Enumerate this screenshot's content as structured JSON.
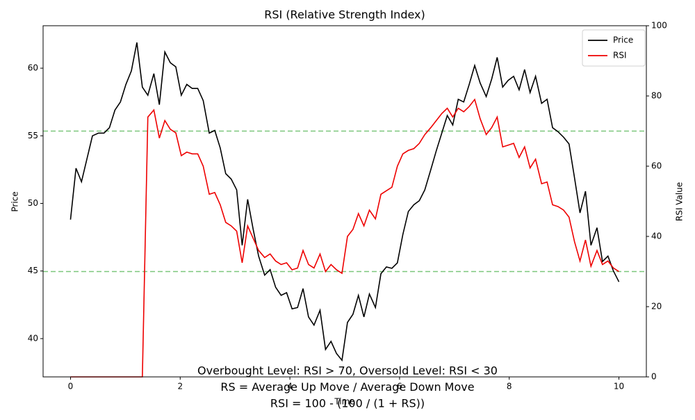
{
  "chart_data": {
    "type": "line",
    "title": "RSI (Relative Strength Index)",
    "xlabel": "Time",
    "ylabel": "Price",
    "y2label": "RSI Value",
    "annotation": [
      "Overbought Level: RSI > 70, Oversold Level: RSI < 30",
      "RS = Average Up Move / Average Down Move",
      "RSI = 100 - (100 / (1 + RS))"
    ],
    "x": [
      0,
      0.1,
      0.2,
      0.3,
      0.4,
      0.51,
      0.61,
      0.71,
      0.81,
      0.91,
      1.01,
      1.11,
      1.21,
      1.31,
      1.41,
      1.52,
      1.62,
      1.72,
      1.82,
      1.92,
      2.02,
      2.12,
      2.22,
      2.32,
      2.42,
      2.53,
      2.63,
      2.73,
      2.83,
      2.93,
      3.03,
      3.13,
      3.23,
      3.33,
      3.43,
      3.54,
      3.64,
      3.74,
      3.84,
      3.94,
      4.04,
      4.14,
      4.24,
      4.34,
      4.44,
      4.55,
      4.65,
      4.75,
      4.85,
      4.95,
      5.05,
      5.15,
      5.25,
      5.35,
      5.45,
      5.56,
      5.66,
      5.76,
      5.86,
      5.96,
      6.06,
      6.16,
      6.26,
      6.36,
      6.46,
      6.57,
      6.67,
      6.77,
      6.87,
      6.97,
      7.07,
      7.17,
      7.27,
      7.37,
      7.47,
      7.58,
      7.68,
      7.78,
      7.88,
      7.98,
      8.08,
      8.18,
      8.28,
      8.38,
      8.48,
      8.59,
      8.69,
      8.79,
      8.89,
      8.99,
      9.09,
      9.19,
      9.29,
      9.39,
      9.49,
      9.6,
      9.7,
      9.8,
      9.9,
      10
    ],
    "series": [
      {
        "name": "Price",
        "color": "#000000",
        "values": [
          48.8,
          52.6,
          51.6,
          53.3,
          55.0,
          55.2,
          55.2,
          55.6,
          56.9,
          57.5,
          58.8,
          59.8,
          61.9,
          58.6,
          58.0,
          59.6,
          57.3,
          61.2,
          60.4,
          60.1,
          58.0,
          58.8,
          58.5,
          58.5,
          57.6,
          55.2,
          55.4,
          54.1,
          52.2,
          51.8,
          51.0,
          46.9,
          50.3,
          48.1,
          46.1,
          44.7,
          45.1,
          43.8,
          43.2,
          43.4,
          42.2,
          42.3,
          43.7,
          41.6,
          41.0,
          42.1,
          39.2,
          39.8,
          38.9,
          38.4,
          41.2,
          41.8,
          43.2,
          41.6,
          43.3,
          42.3,
          44.8,
          45.3,
          45.2,
          45.6,
          47.7,
          49.4,
          49.9,
          50.2,
          51.0,
          52.5,
          53.9,
          55.2,
          56.5,
          55.8,
          57.7,
          57.5,
          58.8,
          60.2,
          58.9,
          57.9,
          59.2,
          60.8,
          58.6,
          59.1,
          59.4,
          58.4,
          59.9,
          58.2,
          59.4,
          57.4,
          57.7,
          55.6,
          55.3,
          54.9,
          54.4,
          51.9,
          49.3,
          50.9,
          46.9,
          48.2,
          45.7,
          46.1,
          45.0,
          44.2
        ]
      },
      {
        "name": "RSI",
        "color": "#ee0000",
        "axis": "y2",
        "values": [
          0,
          0,
          0,
          0,
          0,
          0,
          0,
          0,
          0,
          0,
          0,
          0,
          0,
          0,
          74,
          76,
          68,
          73,
          70.5,
          69.5,
          63,
          64,
          63.5,
          63.5,
          60,
          52,
          52.5,
          49,
          44,
          43,
          41.5,
          32.5,
          43,
          39.5,
          36,
          34,
          35,
          33,
          32,
          32.5,
          30.5,
          31,
          36,
          32,
          31,
          35,
          30,
          32,
          30.5,
          29.5,
          40,
          42,
          46.5,
          43,
          47.5,
          45,
          52,
          53,
          54,
          60,
          63.5,
          64.5,
          65,
          66.5,
          69,
          71,
          73,
          75,
          76.5,
          74,
          76.5,
          75.5,
          77,
          79,
          73.5,
          69,
          71,
          74,
          65.5,
          66,
          66.5,
          62.5,
          65.5,
          59.5,
          62,
          55,
          55.5,
          49,
          48.5,
          47.5,
          45.5,
          38.5,
          33,
          39,
          31.5,
          36,
          32,
          33,
          31,
          30
        ]
      }
    ],
    "hlines": [
      {
        "value": 70,
        "color": "#5cb85c",
        "axis": "y2"
      },
      {
        "value": 30,
        "color": "#5cb85c",
        "axis": "y2"
      }
    ],
    "xlim": [
      -0.5,
      10.5
    ],
    "xticks": [
      0,
      2,
      4,
      6,
      8,
      10
    ],
    "ylim": [
      37.17,
      63.14
    ],
    "yticks": [
      40,
      45,
      50,
      55,
      60
    ],
    "y2lim": [
      0,
      100
    ],
    "y2ticks": [
      0,
      20,
      40,
      60,
      80,
      100
    ],
    "legend": "upper right"
  }
}
